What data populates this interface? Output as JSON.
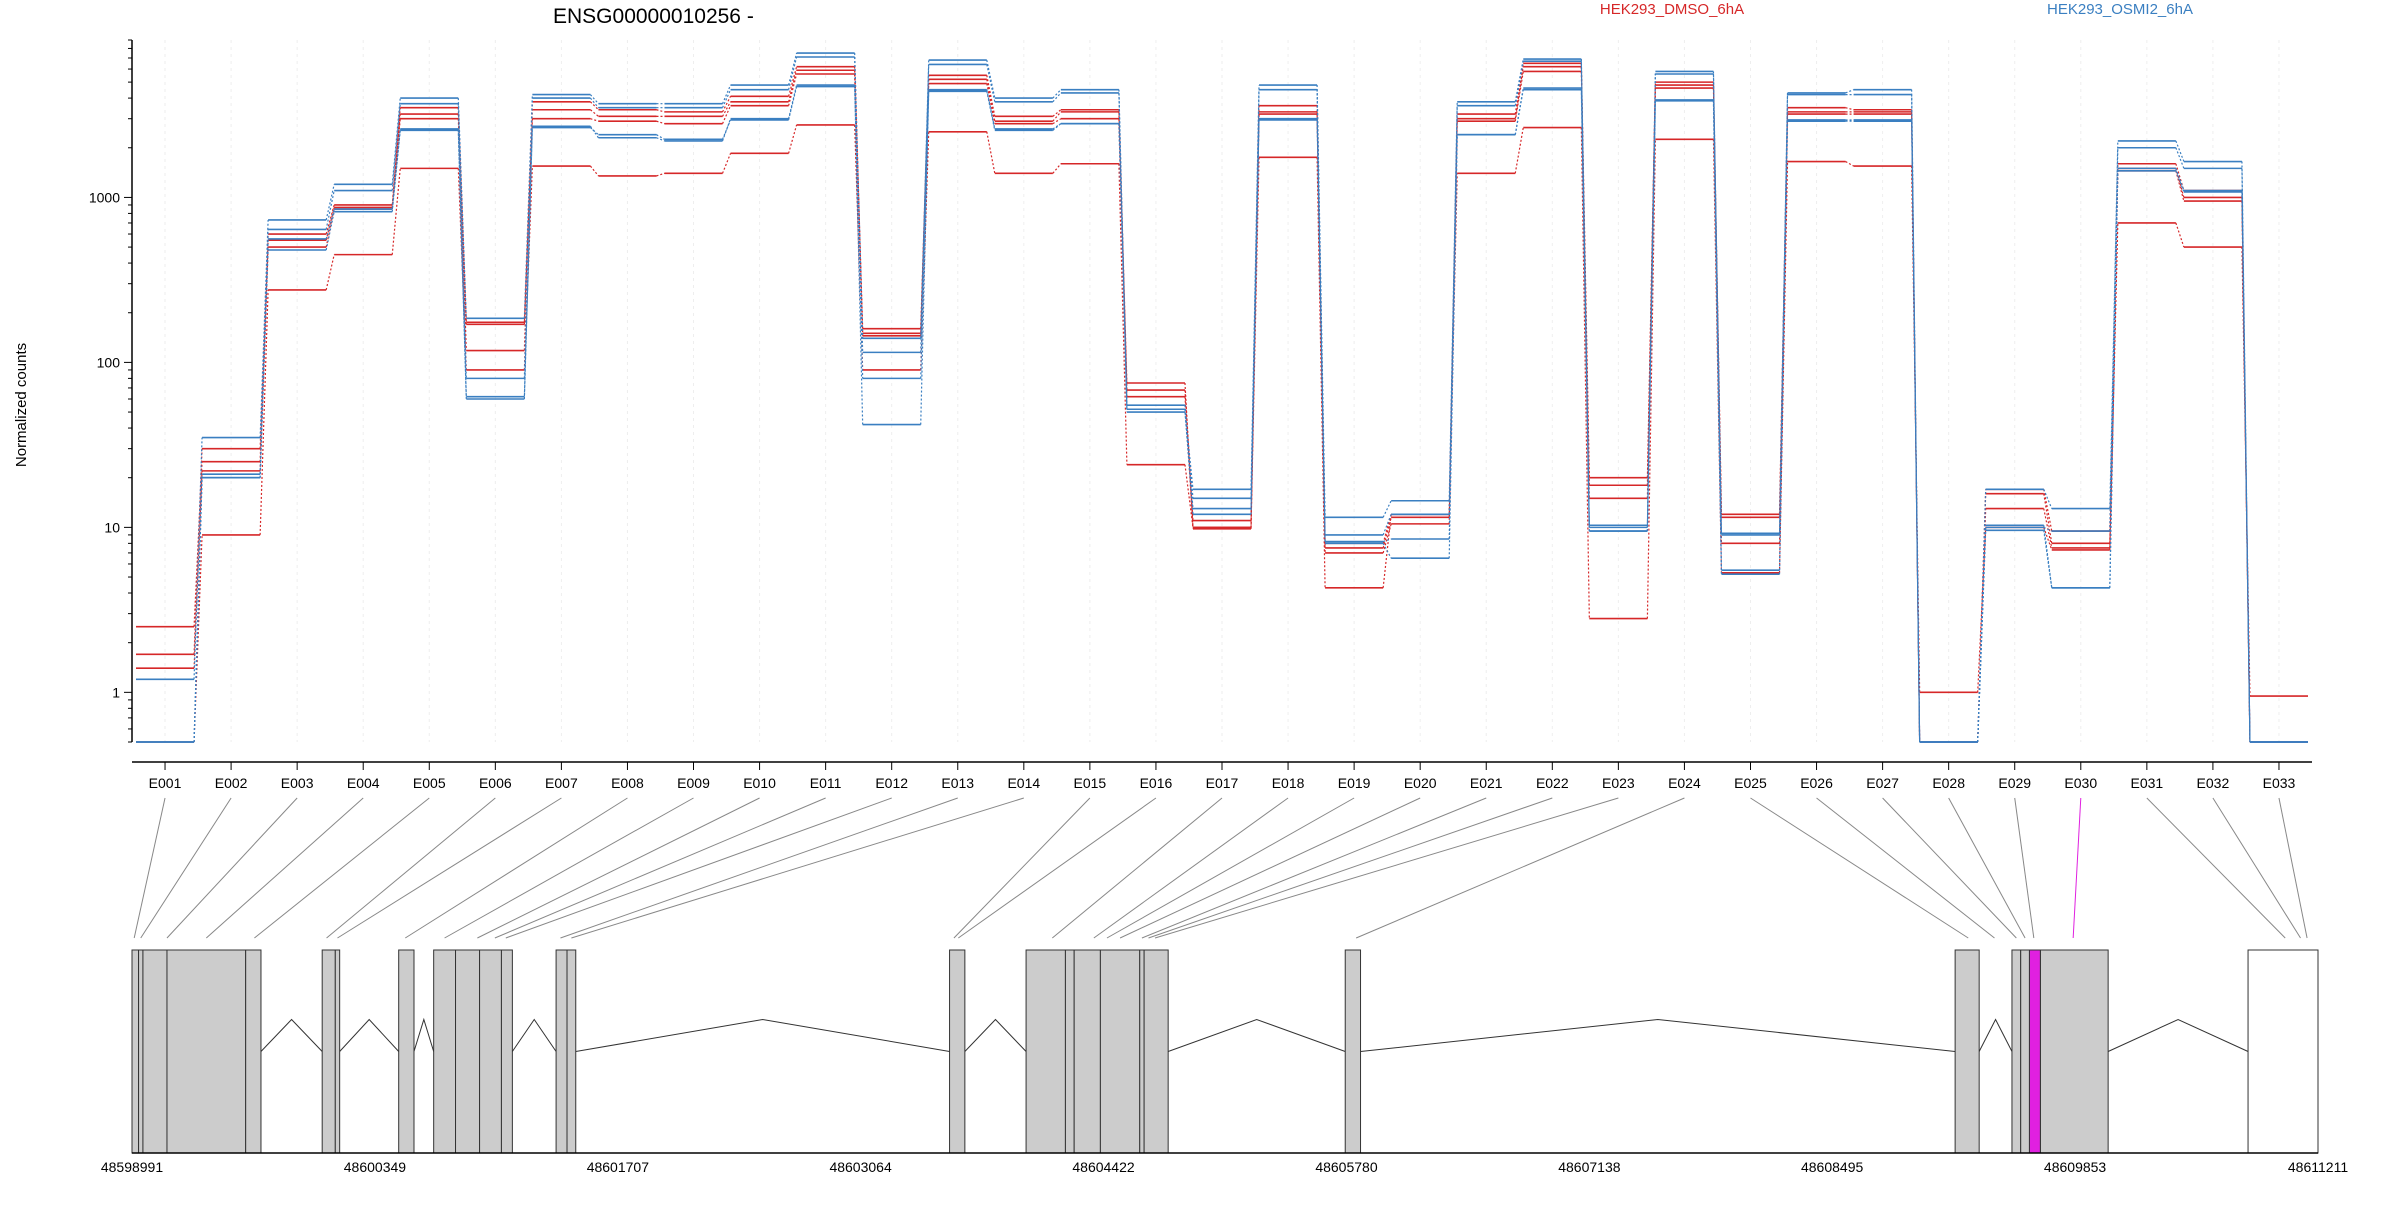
{
  "chart_data": {
    "type": "line",
    "title": "ENSG00000010256 -",
    "ylabel": "Normalized counts",
    "xlabel": "",
    "y_scale": "log",
    "y_ticks": [
      "1",
      "10",
      "100",
      "1000"
    ],
    "ylim": [
      0.5,
      9000
    ],
    "grid": "faint vertical",
    "legend_placement": "top-right",
    "categories": [
      "E001",
      "E002",
      "E003",
      "E004",
      "E005",
      "E006",
      "E007",
      "E008",
      "E009",
      "E010",
      "E011",
      "E012",
      "E013",
      "E014",
      "E015",
      "E016",
      "E017",
      "E018",
      "E019",
      "E020",
      "E021",
      "E022",
      "E023",
      "E024",
      "E025",
      "E026",
      "E027",
      "E028",
      "E029",
      "E030",
      "E031",
      "E032",
      "E033"
    ],
    "highlighted_exon": "E030",
    "series": [
      {
        "name": "HEK293_DMSO_6hA",
        "color": "#d62728",
        "replicates": [
          [
            2.5,
            25,
            600,
            900,
            3500,
            175,
            3800,
            3400,
            3300,
            4100,
            6200,
            160,
            5500,
            3100,
            3400,
            75,
            10,
            3600,
            8,
            12,
            3200,
            6500,
            20,
            5000,
            12,
            3500,
            3400,
            0.5,
            17,
            9.5,
            1600,
            1100,
            0.5
          ],
          [
            1.7,
            30,
            550,
            870,
            3200,
            118,
            3400,
            3100,
            3100,
            3800,
            5900,
            150,
            5200,
            2900,
            3300,
            68,
            11,
            3300,
            7.5,
            11.5,
            3000,
            6200,
            18,
            4800,
            11.5,
            3300,
            3300,
            0.5,
            16,
            8,
            1500,
            1000,
            0.5
          ],
          [
            1.4,
            22,
            500,
            850,
            3000,
            170,
            3000,
            2900,
            2800,
            3600,
            5600,
            145,
            4900,
            2800,
            3000,
            62,
            9.8,
            3200,
            7,
            10.5,
            2900,
            5800,
            15,
            4600,
            8,
            3200,
            3200,
            0.5,
            13,
            7.5,
            1450,
            950,
            0.5
          ],
          [
            0.5,
            9,
            275,
            450,
            1500,
            90,
            1550,
            1350,
            1400,
            1850,
            2750,
            90,
            2500,
            1400,
            1600,
            24,
            10,
            1750,
            4.3,
            12,
            1400,
            2650,
            2.8,
            2250,
            5.3,
            1650,
            1550,
            1.0,
            10,
            7.3,
            700,
            500,
            0.95
          ]
        ]
      },
      {
        "name": "HEK293_OSMI2_6hA",
        "color": "#3a7fc1",
        "replicates": [
          [
            1.2,
            35,
            730,
            1200,
            4000,
            185,
            4200,
            3700,
            3700,
            4800,
            7500,
            140,
            6800,
            4000,
            4500,
            52,
            17,
            4800,
            11.5,
            14.5,
            3800,
            6900,
            10,
            5800,
            9,
            4300,
            4500,
            0.5,
            17,
            13,
            2200,
            1650,
            0.5
          ],
          [
            0.5,
            21,
            640,
            1100,
            3700,
            80,
            4000,
            3500,
            3500,
            4500,
            7100,
            115,
            6400,
            3800,
            4300,
            55,
            15,
            4500,
            9,
            12,
            3600,
            6700,
            9.5,
            5600,
            9.2,
            4200,
            4200,
            0.5,
            10,
            9.5,
            2000,
            1500,
            0.5
          ],
          [
            0.5,
            20,
            560,
            850,
            2600,
            60,
            2700,
            2300,
            2200,
            3000,
            4800,
            80,
            4500,
            2600,
            2800,
            52,
            13,
            3000,
            8.2,
            8.5,
            2400,
            4600,
            10.3,
            3900,
            5.2,
            2950,
            2950,
            0.5,
            10.3,
            4.3,
            1500,
            1100,
            0.5
          ],
          [
            0.5,
            20,
            480,
            820,
            2550,
            62,
            2650,
            2400,
            2250,
            2950,
            4700,
            42,
            4400,
            2550,
            2800,
            50,
            12,
            2950,
            8,
            6.5,
            2400,
            4500,
            9.5,
            3850,
            5.5,
            2900,
            2900,
            0.5,
            9.6,
            4.3,
            1450,
            1080,
            0.5
          ]
        ]
      }
    ],
    "gene_model": {
      "coordinate_ticks": [
        "48598991",
        "48600349",
        "48601707",
        "48603064",
        "48604422",
        "48605780",
        "48607138",
        "48608495",
        "48609853",
        "48611211"
      ],
      "highlight_color": "#e020e0",
      "box_fill": "#cccccc"
    }
  }
}
